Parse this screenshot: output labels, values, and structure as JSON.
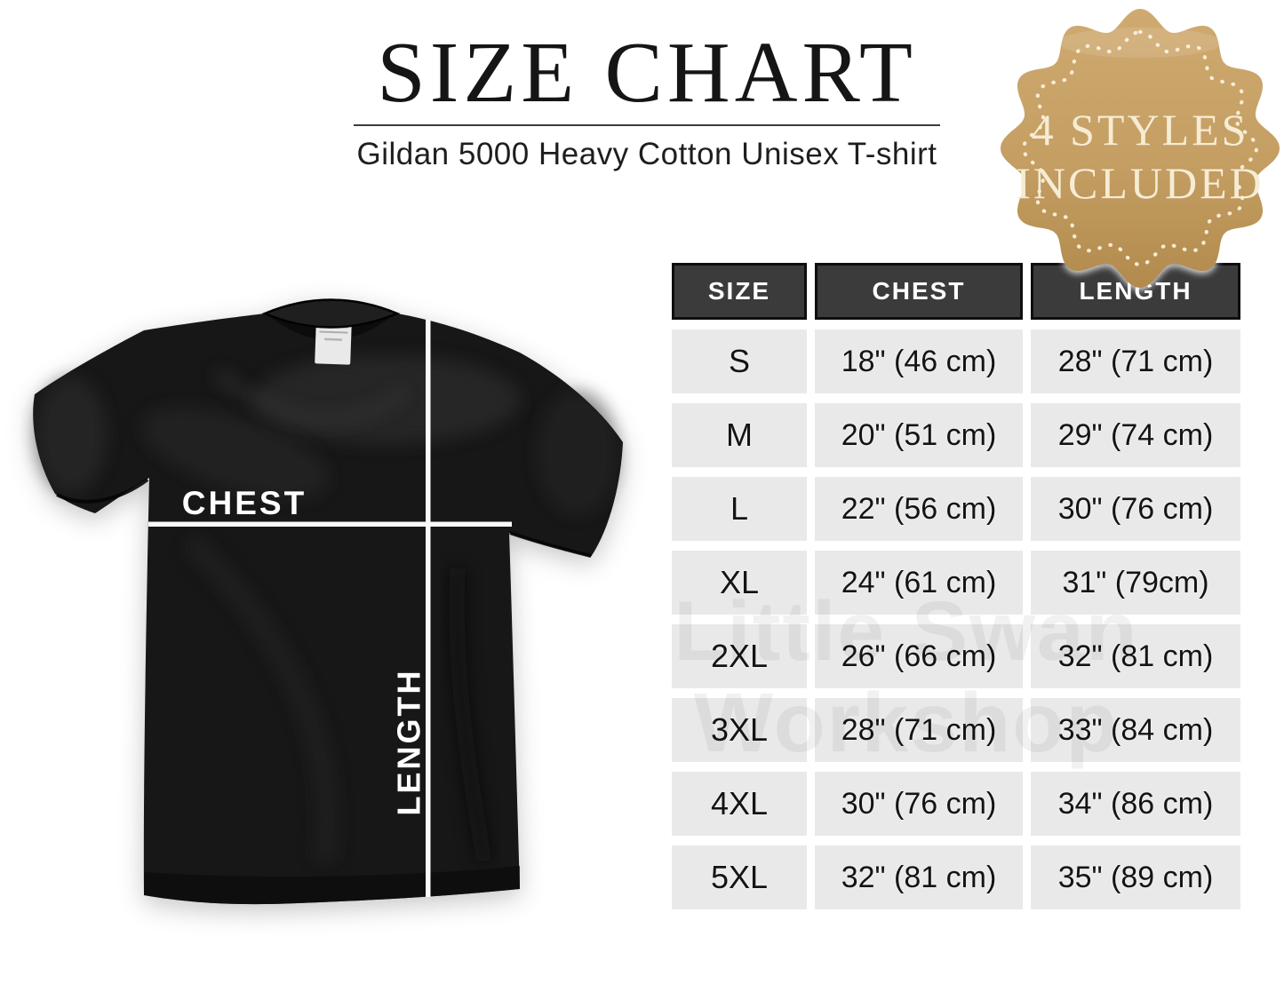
{
  "header": {
    "title": "SIZE CHART",
    "subtitle": "Gildan 5000 Heavy Cotton Unisex T-shirt"
  },
  "badge": {
    "line1": "4 STYLES",
    "line2": "INCLUDED",
    "fill_color": "#c5a064",
    "text_color": "#f6ecd4"
  },
  "shirt": {
    "chest_label": "CHEST",
    "length_label": "LENGTH",
    "fabric_color": "#171717",
    "measure_line_color": "#fafafa"
  },
  "watermark": {
    "line1": "Little Swan",
    "line2": "Workshop"
  },
  "table": {
    "header_bg": "#3b3b3b",
    "cell_bg": "#e9e9e9",
    "columns": [
      "SIZE",
      "CHEST",
      "LENGTH"
    ],
    "rows": [
      {
        "size": "S",
        "chest": "18\" (46 cm)",
        "length": "28\" (71 cm)"
      },
      {
        "size": "M",
        "chest": "20\" (51 cm)",
        "length": "29\" (74 cm)"
      },
      {
        "size": "L",
        "chest": "22\" (56 cm)",
        "length": "30\" (76 cm)"
      },
      {
        "size": "XL",
        "chest": "24\" (61 cm)",
        "length": "31\" (79cm)"
      },
      {
        "size": "2XL",
        "chest": "26\" (66 cm)",
        "length": "32\" (81 cm)"
      },
      {
        "size": "3XL",
        "chest": "28\" (71 cm)",
        "length": "33\" (84 cm)"
      },
      {
        "size": "4XL",
        "chest": "30\" (76 cm)",
        "length": "34\" (86 cm)"
      },
      {
        "size": "5XL",
        "chest": "32\" (81 cm)",
        "length": "35\" (89 cm)"
      }
    ]
  },
  "chart_data": {
    "type": "table",
    "title": "SIZE CHART",
    "subtitle": "Gildan 5000 Heavy Cotton Unisex T-shirt",
    "note": "4 STYLES INCLUDED",
    "columns": [
      "SIZE",
      "CHEST",
      "LENGTH"
    ],
    "rows": [
      [
        "S",
        "18\" (46 cm)",
        "28\" (71 cm)"
      ],
      [
        "M",
        "20\" (51 cm)",
        "29\" (74 cm)"
      ],
      [
        "L",
        "22\" (56 cm)",
        "30\" (76 cm)"
      ],
      [
        "XL",
        "24\" (61 cm)",
        "31\" (79cm)"
      ],
      [
        "2XL",
        "26\" (66 cm)",
        "32\" (81 cm)"
      ],
      [
        "3XL",
        "28\" (71 cm)",
        "33\" (84 cm)"
      ],
      [
        "4XL",
        "30\" (76 cm)",
        "34\" (86 cm)"
      ],
      [
        "5XL",
        "32\" (81 cm)",
        "35\" (89 cm)"
      ]
    ]
  }
}
